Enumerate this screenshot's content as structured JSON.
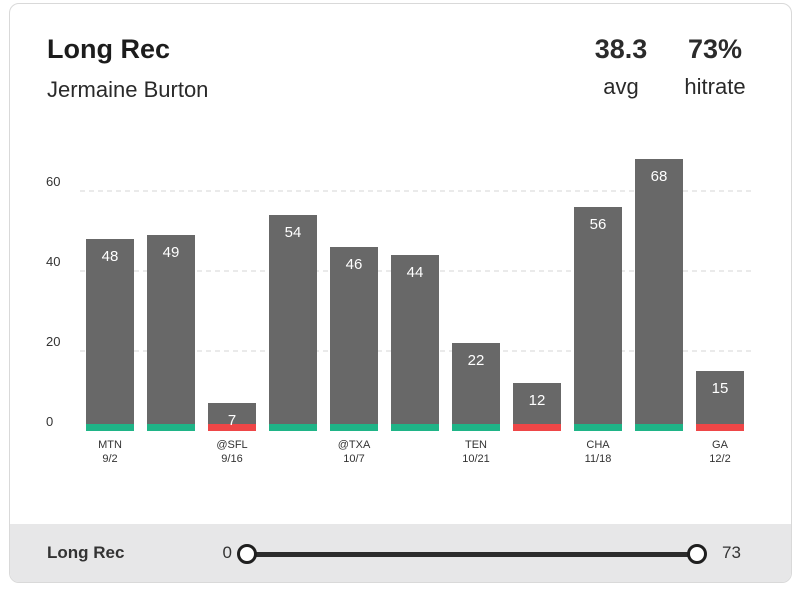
{
  "header": {
    "title": "Long Rec",
    "player": "Jermaine Burton",
    "avg_value": "38.3",
    "avg_label": "avg",
    "hitrate_value": "73%",
    "hitrate_label": "hitrate"
  },
  "chart_data": {
    "type": "bar",
    "title": "",
    "xlabel": "",
    "ylabel": "",
    "ylim": [
      0,
      60
    ],
    "yticks": [
      0,
      20,
      40,
      60
    ],
    "grid": true,
    "categories": [
      "MTN 9/2",
      "",
      "@SFL 9/16",
      "",
      "@TXA 10/7",
      "",
      "TEN 10/21",
      "",
      "CHA 11/18",
      "",
      "GA 12/2"
    ],
    "tick_labels": [
      {
        "top": "MTN",
        "bottom": "9/2"
      },
      {
        "top": "",
        "bottom": ""
      },
      {
        "top": "@SFL",
        "bottom": "9/16"
      },
      {
        "top": "",
        "bottom": ""
      },
      {
        "top": "@TXA",
        "bottom": "10/7"
      },
      {
        "top": "",
        "bottom": ""
      },
      {
        "top": "TEN",
        "bottom": "10/21"
      },
      {
        "top": "",
        "bottom": ""
      },
      {
        "top": "CHA",
        "bottom": "11/18"
      },
      {
        "top": "",
        "bottom": ""
      },
      {
        "top": "GA",
        "bottom": "12/2"
      }
    ],
    "values": [
      48,
      49,
      7,
      54,
      46,
      44,
      22,
      12,
      56,
      68,
      15
    ],
    "hit": [
      true,
      true,
      false,
      true,
      true,
      true,
      true,
      false,
      true,
      true,
      false
    ],
    "colors": {
      "bar": "#686868",
      "hit": "#1fb487",
      "miss": "#ee4647",
      "grid": "#d6d6d6",
      "label": "#333333"
    }
  },
  "footer": {
    "label": "Long Rec",
    "range_min": "0",
    "range_max": "73"
  }
}
